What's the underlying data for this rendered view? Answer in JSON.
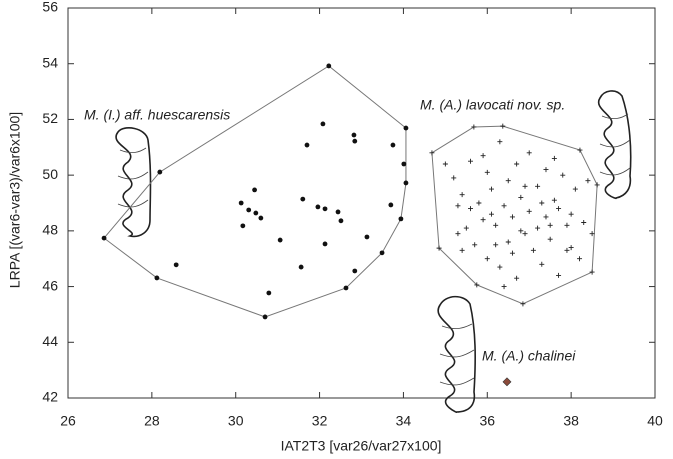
{
  "chart_data": {
    "type": "scatter",
    "x_label": "IAT2T3 [var26/var27x100]",
    "y_label": "LRPA [(var6-var3)/var6x100]",
    "xlim": [
      26,
      40
    ],
    "xticks": [
      26,
      28,
      30,
      32,
      34,
      36,
      38,
      40
    ],
    "ylim": [
      42,
      56
    ],
    "yticks": [
      42,
      44,
      46,
      48,
      50,
      52,
      54,
      56
    ],
    "series": [
      {
        "name": "M. (I.) aff. huescarensis",
        "color": "#111111",
        "marker": "dot",
        "x": [
          26.86,
          28.12,
          30.7,
          32.63,
          33.49,
          33.94,
          34.06,
          34.01,
          34.06,
          32.22,
          28.19,
          28.58,
          30.13,
          30.17,
          30.31,
          30.45,
          30.48,
          30.6,
          30.79,
          31.06,
          31.6,
          31.7,
          31.56,
          31.96,
          32.13,
          32.13,
          32.08,
          32.44,
          32.51,
          32.82,
          32.84,
          32.84,
          33.13,
          33.7,
          33.75
        ],
        "y": [
          47.74,
          46.31,
          44.91,
          45.95,
          47.21,
          48.43,
          49.72,
          50.4,
          51.69,
          53.92,
          50.11,
          46.78,
          49.0,
          48.18,
          48.75,
          49.47,
          48.64,
          48.46,
          45.77,
          47.67,
          49.14,
          51.08,
          46.7,
          48.86,
          48.79,
          47.53,
          51.84,
          48.68,
          48.36,
          51.44,
          51.22,
          46.56,
          47.78,
          48.93,
          51.08
        ]
      },
      {
        "name": "M. (A.) lavocati nov. sp.",
        "color": "#222222",
        "marker": "cross",
        "x": [
          34.68,
          35.68,
          36.37,
          38.21,
          38.62,
          38.5,
          36.85,
          35.75,
          34.85,
          35.0,
          35.2,
          35.3,
          35.4,
          35.5,
          35.6,
          35.7,
          35.8,
          35.9,
          36.0,
          36.0,
          36.1,
          36.2,
          36.3,
          36.3,
          36.4,
          36.5,
          36.5,
          36.6,
          36.7,
          36.7,
          36.8,
          36.9,
          37.0,
          37.0,
          37.1,
          37.2,
          37.2,
          37.3,
          37.4,
          37.4,
          37.5,
          37.6,
          37.7,
          37.7,
          37.8,
          37.9,
          38.0,
          38.1,
          38.2,
          38.3,
          38.4,
          38.5,
          35.3,
          35.6,
          36.2,
          36.8,
          37.3,
          37.9,
          36.4,
          35.9,
          37.6,
          36.1,
          36.9,
          37.5,
          38.0,
          35.4,
          36.6
        ],
        "y": [
          50.8,
          51.73,
          51.76,
          50.9,
          49.65,
          46.52,
          45.38,
          46.06,
          47.38,
          50.4,
          49.9,
          48.9,
          49.3,
          48.1,
          50.5,
          47.5,
          49.0,
          48.4,
          50.1,
          47.0,
          49.5,
          48.2,
          51.2,
          46.7,
          48.9,
          49.8,
          47.6,
          48.5,
          50.4,
          46.3,
          49.2,
          47.9,
          48.7,
          50.8,
          47.3,
          49.6,
          48.1,
          46.8,
          50.2,
          48.5,
          47.7,
          49.1,
          48.8,
          46.4,
          50.0,
          47.3,
          48.6,
          49.5,
          47.0,
          48.3,
          49.8,
          47.9,
          47.9,
          48.8,
          47.5,
          48.0,
          49.0,
          48.2,
          46.0,
          50.7,
          50.6,
          48.6,
          49.6,
          48.2,
          47.4,
          47.3,
          47.2
        ]
      },
      {
        "name": "M. (A.) chalinei",
        "color": "#8b4a3a",
        "marker": "diamond",
        "x": [
          36.47
        ],
        "y": [
          42.58
        ]
      }
    ]
  }
}
